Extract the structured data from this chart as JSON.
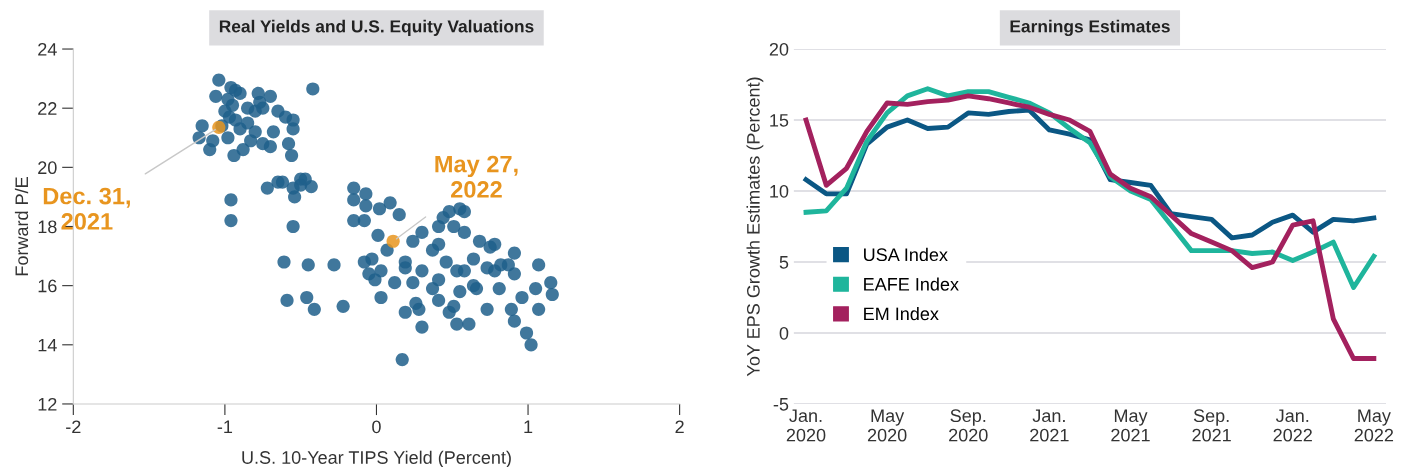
{
  "chart_data": [
    {
      "type": "scatter",
      "title": "Real Yields and U.S. Equity Valuations",
      "xlabel": "U.S. 10-Year TIPS Yield (Percent)",
      "ylabel": "Forward P/E",
      "xlim": [
        -2,
        2
      ],
      "xticks": [
        -2,
        -1,
        0,
        1,
        2
      ],
      "ylim": [
        12,
        24
      ],
      "yticks": [
        12,
        14,
        16,
        18,
        20,
        22,
        24
      ],
      "grid": false,
      "legend": false,
      "marker": "circle",
      "series": [
        {
          "color": "#1f5f8b",
          "x": [
            -1.04,
            -1.06,
            -0.98,
            -0.95,
            -1.0,
            -0.97,
            -0.93,
            -1.02,
            -1.15,
            -1.17,
            -1.08,
            -0.98,
            -0.9,
            -0.85,
            -0.8,
            -0.77,
            -0.75,
            -0.9,
            -0.93,
            -0.78,
            -0.7,
            -0.65,
            -0.6,
            -0.55,
            -0.55,
            -0.8,
            -0.83,
            -0.88,
            -0.94,
            -0.75,
            -0.7,
            -0.68,
            -0.58,
            -0.56,
            -1.1,
            -0.85,
            -0.96,
            -0.42,
            -0.65,
            -0.62,
            -0.55,
            -0.5,
            -0.5,
            -0.47,
            -0.43,
            -0.72,
            -0.54,
            -0.96,
            -0.96,
            -0.55,
            -0.61,
            -0.45,
            -0.59,
            -0.41,
            -0.15,
            -0.15,
            -0.07,
            -0.07,
            -0.15,
            -0.08,
            0.02,
            0.09,
            0.15,
            0.01,
            -0.28,
            -0.46,
            -0.22,
            0.17,
            0.03,
            -0.03,
            0.19,
            0.41,
            0.48,
            0.55,
            0.58,
            0.75,
            0.78,
            0.87,
            0.91,
            1.07,
            0.51,
            0.26,
            0.19,
            0.3,
            0.53,
            0.61,
            0.73,
            0.89,
            0.91,
            0.99,
            1.02,
            1.07,
            1.16,
            1.15,
            1.05,
            0.96,
            0.66,
            0.81,
            0.37,
            0.41,
            0.12,
            -0.01,
            0.03,
            0.24,
            0.58,
            0.46,
            0.64,
            0.68,
            0.78,
            0.91,
            0.41,
            0.44,
            0.51,
            0.58,
            0.3,
            0.24,
            0.07,
            -0.08,
            -0.05,
            0.28,
            0.48,
            0.64,
            0.19,
            0.3,
            0.37,
            0.53,
            0.73,
            0.82,
            0.55,
            0.41
          ],
          "values": [
            22.95,
            22.4,
            22.3,
            22.1,
            21.9,
            21.7,
            21.6,
            21.4,
            21.4,
            21.0,
            20.9,
            21.0,
            21.3,
            21.5,
            21.9,
            22.2,
            22.0,
            22.5,
            22.6,
            22.5,
            22.4,
            21.9,
            21.7,
            21.6,
            21.3,
            21.2,
            20.9,
            20.6,
            20.4,
            20.8,
            20.7,
            21.2,
            20.8,
            20.4,
            20.6,
            22.0,
            22.7,
            22.65,
            19.5,
            19.5,
            19.3,
            19.6,
            19.4,
            19.6,
            19.35,
            19.3,
            19.0,
            18.9,
            18.2,
            18.0,
            16.8,
            16.7,
            15.5,
            15.2,
            19.3,
            18.9,
            19.1,
            18.7,
            18.2,
            18.2,
            18.6,
            18.8,
            18.4,
            17.7,
            16.7,
            15.6,
            15.3,
            13.5,
            15.6,
            16.9,
            16.8,
            17.4,
            18.5,
            18.6,
            17.8,
            17.3,
            16.5,
            16.7,
            17.1,
            16.7,
            15.3,
            15.4,
            15.1,
            14.6,
            14.7,
            14.7,
            15.2,
            15.2,
            14.8,
            14.4,
            14.0,
            15.2,
            15.7,
            16.1,
            15.9,
            15.6,
            15.9,
            15.9,
            15.9,
            15.5,
            16.1,
            16.2,
            16.5,
            16.1,
            16.5,
            16.8,
            16.9,
            17.5,
            17.4,
            16.4,
            18.0,
            18.3,
            18.0,
            18.5,
            17.8,
            17.5,
            17.2,
            16.8,
            16.4,
            15.2,
            15.1,
            16.0,
            16.6,
            16.5,
            17.2,
            16.5,
            16.6,
            16.7,
            15.8,
            16.2
          ]
        },
        {
          "color": "#e8951f",
          "x": [
            -1.04,
            0.11
          ],
          "values": [
            21.35,
            17.5
          ]
        }
      ],
      "annotations": [
        {
          "text": "Dec. 31,\n2021",
          "x": -1.04,
          "y": 21.35
        },
        {
          "text": "May 27,\n2022",
          "x": 0.11,
          "y": 17.5
        }
      ]
    },
    {
      "type": "line",
      "title": "Earnings Estimates",
      "ylabel": "YoY EPS Growth Estimates (Percent)",
      "categories": [
        "Jan.\n2020",
        null,
        null,
        null,
        "May\n2020",
        null,
        null,
        null,
        "Sep.\n2020",
        null,
        null,
        null,
        "Jan.\n2021",
        null,
        null,
        null,
        "May\n2021",
        null,
        null,
        null,
        "Sep.\n2021",
        null,
        null,
        null,
        "Jan.\n2022",
        null,
        null,
        null,
        "May\n2022"
      ],
      "ylim": [
        -5,
        20
      ],
      "yticks": [
        -5,
        0,
        5,
        10,
        15,
        20
      ],
      "grid": "y",
      "legend": "bottom left",
      "marker": "none",
      "line_style": "solid",
      "series": [
        {
          "name": "USA Index",
          "color": "#0b5784",
          "values": [
            10.8,
            9.8,
            9.8,
            13.3,
            14.5,
            15.0,
            14.4,
            14.5,
            15.5,
            15.4,
            15.6,
            15.7,
            14.3,
            14.0,
            13.6,
            10.8,
            10.6,
            10.4,
            8.4,
            8.2,
            8.0,
            6.7,
            6.9,
            7.8,
            8.3,
            7.1,
            8.0,
            7.9,
            8.1
          ]
        },
        {
          "name": "EAFE Index",
          "color": "#1fb59c",
          "values": [
            8.5,
            8.6,
            10.2,
            13.5,
            15.5,
            16.7,
            17.2,
            16.7,
            17.0,
            17.0,
            16.6,
            16.2,
            15.5,
            14.4,
            13.4,
            11.0,
            10.0,
            9.4,
            7.6,
            5.8,
            5.8,
            5.8,
            5.6,
            5.7,
            5.1,
            5.7,
            6.4,
            3.2,
            5.4
          ]
        },
        {
          "name": "EM Index",
          "color": "#a3215e",
          "values": [
            15.0,
            10.4,
            11.6,
            14.2,
            16.2,
            16.1,
            16.3,
            16.4,
            16.7,
            16.5,
            16.2,
            15.9,
            15.4,
            15.0,
            14.2,
            11.2,
            10.2,
            9.6,
            8.3,
            7.0,
            6.4,
            5.8,
            4.6,
            5.0,
            7.6,
            7.9,
            1.0,
            -1.8,
            -1.8
          ]
        }
      ]
    }
  ]
}
